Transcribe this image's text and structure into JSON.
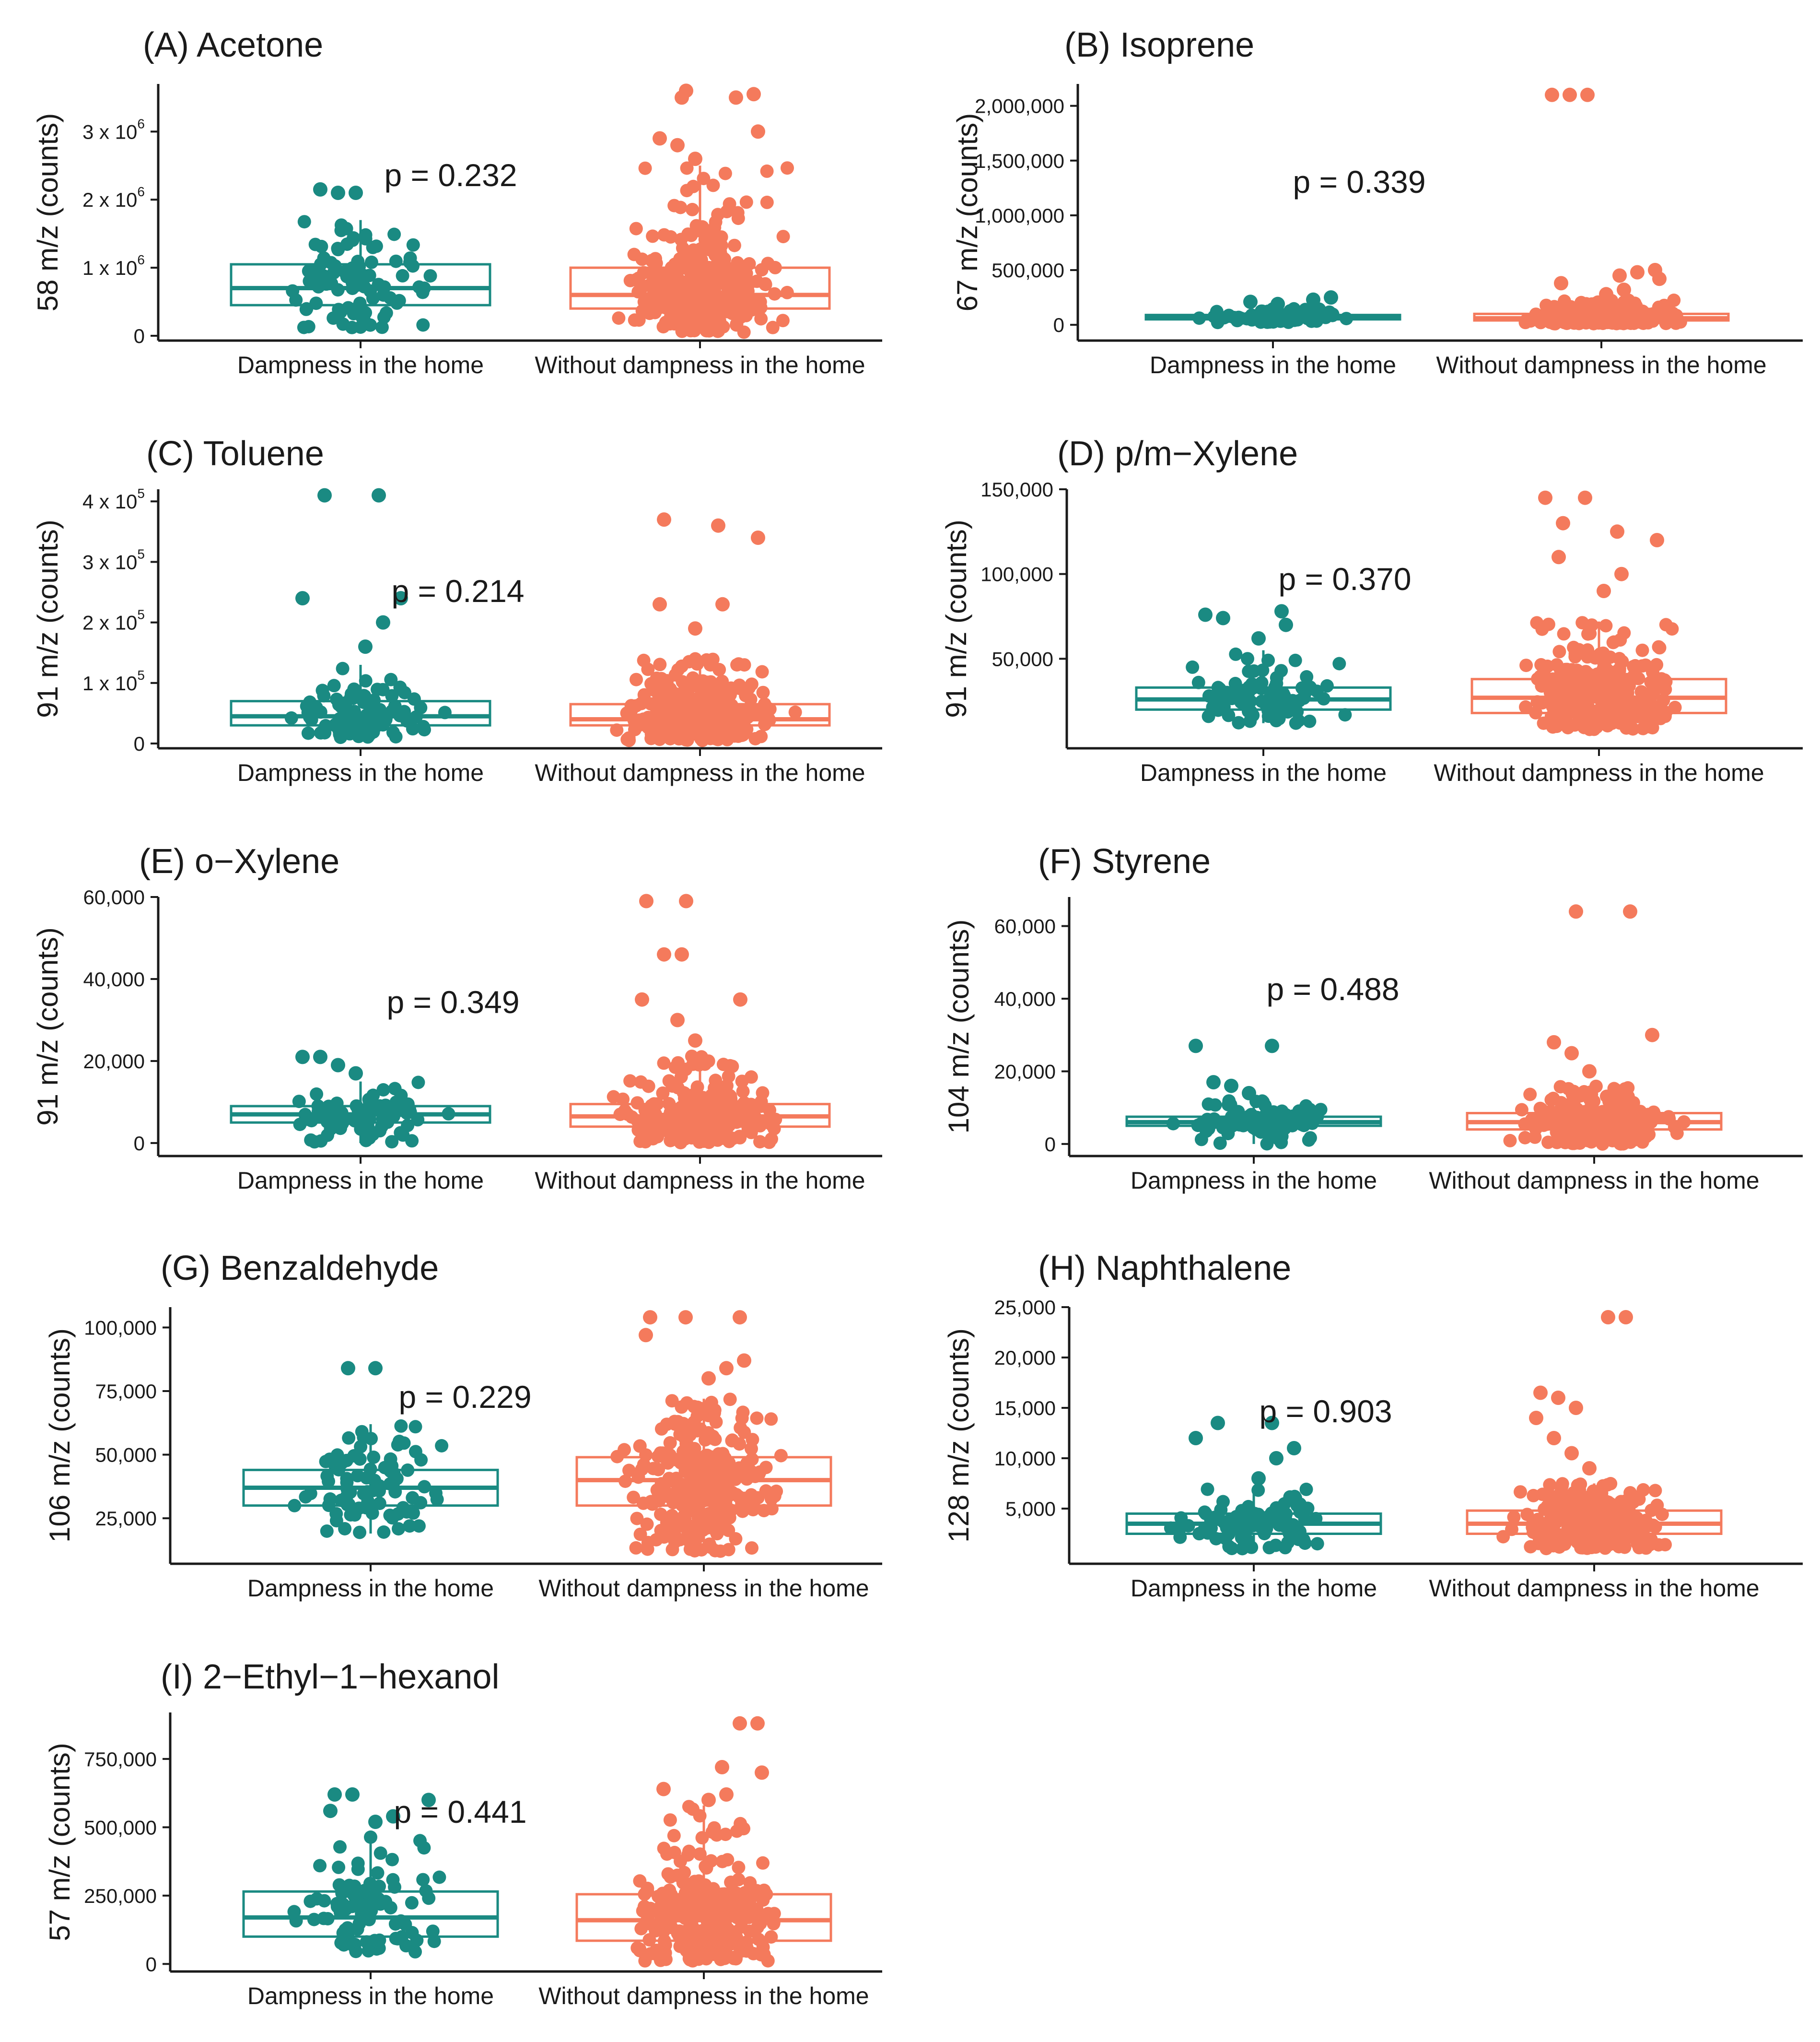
{
  "colors": {
    "dampness": "#1a8a82",
    "without": "#f47a5c",
    "axis": "#1a1a1a"
  },
  "chart_data": [
    {
      "type": "box",
      "panel": "(A)",
      "title": "Acetone",
      "ylabel": "58 m/z (counts)",
      "categories": [
        "Dampness in the home",
        "Without dampness in the home"
      ],
      "ylim": [
        0,
        3700000
      ],
      "yticks": [
        0,
        1000000,
        2000000,
        3000000
      ],
      "ytick_labels": [
        "0",
        "1 x 10",
        "2 x 10",
        "3 x 10"
      ],
      "ytick_sup": [
        "",
        "6",
        "6",
        "6"
      ],
      "p_value": "p = 0.232",
      "series": [
        {
          "name": "Dampness in the home",
          "n": 90,
          "min": 100000,
          "q1": 450000,
          "median": 700000,
          "q3": 1050000,
          "max": 1700000,
          "outliers": [
            2100000,
            2100000,
            2150000
          ]
        },
        {
          "name": "Without dampness in the home",
          "n": 300,
          "min": 50000,
          "q1": 400000,
          "median": 600000,
          "q3": 1000000,
          "max": 2500000,
          "outliers": [
            2600000,
            2800000,
            2900000,
            3000000,
            3500000,
            3500000,
            3550000,
            3600000
          ]
        }
      ]
    },
    {
      "type": "box",
      "panel": "(B)",
      "title": "Isoprene",
      "ylabel": "67 m/z (counts)",
      "categories": [
        "Dampness in the home",
        "Without dampness in the home"
      ],
      "ylim": [
        -100000,
        2200000
      ],
      "yticks": [
        0,
        500000,
        1000000,
        1500000,
        2000000
      ],
      "ytick_labels": [
        "0",
        "500,000",
        "1,000,000",
        "1,500,000",
        "2,000,000"
      ],
      "p_value": "p = 0.339",
      "series": [
        {
          "name": "Dampness in the home",
          "n": 90,
          "min": 20000,
          "q1": 50000,
          "median": 65000,
          "q3": 90000,
          "max": 150000,
          "outliers": [
            190000,
            210000,
            230000,
            250000
          ]
        },
        {
          "name": "Without dampness in the home",
          "n": 300,
          "min": 10000,
          "q1": 40000,
          "median": 60000,
          "q3": 100000,
          "max": 230000,
          "outliers": [
            280000,
            320000,
            380000,
            420000,
            450000,
            480000,
            500000,
            2100000,
            2100000,
            2100000
          ]
        }
      ]
    },
    {
      "type": "box",
      "panel": "(C)",
      "title": "Toluene",
      "ylabel": "91 m/z (counts)",
      "categories": [
        "Dampness in the home",
        "Without dampness in the home"
      ],
      "ylim": [
        0,
        420000
      ],
      "yticks": [
        0,
        100000,
        200000,
        300000,
        400000
      ],
      "ytick_labels": [
        "0",
        "1 x 10",
        "2 x 10",
        "3 x 10",
        "4 x 10"
      ],
      "ytick_sup": [
        "",
        "5",
        "5",
        "5",
        "5"
      ],
      "p_value": "p = 0.214",
      "series": [
        {
          "name": "Dampness in the home",
          "n": 90,
          "min": 10000,
          "q1": 30000,
          "median": 45000,
          "q3": 70000,
          "max": 130000,
          "outliers": [
            160000,
            200000,
            240000,
            240000,
            410000,
            410000
          ]
        },
        {
          "name": "Without dampness in the home",
          "n": 300,
          "min": 5000,
          "q1": 30000,
          "median": 40000,
          "q3": 65000,
          "max": 140000,
          "outliers": [
            190000,
            230000,
            230000,
            340000,
            360000,
            370000
          ]
        }
      ]
    },
    {
      "type": "box",
      "panel": "(D)",
      "title": "p/m−Xylene",
      "ylabel": "91 m/z (counts)",
      "categories": [
        "Dampness in the home",
        "Without dampness in the home"
      ],
      "ylim": [
        0,
        150000
      ],
      "yticks": [
        50000,
        100000,
        150000
      ],
      "ytick_labels": [
        "50,000",
        "100,000",
        "150,000"
      ],
      "p_value": "p = 0.370",
      "series": [
        {
          "name": "Dampness in the home",
          "n": 90,
          "min": 12000,
          "q1": 20000,
          "median": 26000,
          "q3": 33000,
          "max": 55000,
          "outliers": [
            62000,
            70000,
            74000,
            76000,
            78000
          ]
        },
        {
          "name": "Without dampness in the home",
          "n": 300,
          "min": 8000,
          "q1": 18000,
          "median": 27000,
          "q3": 38000,
          "max": 72000,
          "outliers": [
            90000,
            100000,
            110000,
            120000,
            125000,
            130000,
            145000,
            145000
          ]
        }
      ]
    },
    {
      "type": "box",
      "panel": "(E)",
      "title": "o−Xylene",
      "ylabel": "91 m/z (counts)",
      "categories": [
        "Dampness in the home",
        "Without dampness in the home"
      ],
      "ylim": [
        -2000,
        60000
      ],
      "yticks": [
        0,
        20000,
        40000,
        60000
      ],
      "ytick_labels": [
        "0",
        "20,000",
        "40,000",
        "60,000"
      ],
      "p_value": "p = 0.349",
      "series": [
        {
          "name": "Dampness in the home",
          "n": 90,
          "min": 0,
          "q1": 5000,
          "median": 7000,
          "q3": 9000,
          "max": 15000,
          "outliers": [
            17000,
            19000,
            21000,
            21000
          ]
        },
        {
          "name": "Without dampness in the home",
          "n": 300,
          "min": 0,
          "q1": 4000,
          "median": 6500,
          "q3": 9500,
          "max": 22000,
          "outliers": [
            25000,
            30000,
            35000,
            35000,
            46000,
            46000,
            59000,
            59000
          ]
        }
      ]
    },
    {
      "type": "box",
      "panel": "(F)",
      "title": "Styrene",
      "ylabel": "104 m/z (counts)",
      "categories": [
        "Dampness in the home",
        "Without dampness in the home"
      ],
      "ylim": [
        -2000,
        68000
      ],
      "yticks": [
        0,
        20000,
        40000,
        60000
      ],
      "ytick_labels": [
        "0",
        "20,000",
        "40,000",
        "60,000"
      ],
      "p_value": "p = 0.488",
      "series": [
        {
          "name": "Dampness in the home",
          "n": 90,
          "min": 0,
          "q1": 5000,
          "median": 6000,
          "q3": 7500,
          "max": 12000,
          "outliers": [
            14000,
            16000,
            17000,
            27000,
            27000
          ]
        },
        {
          "name": "Without dampness in the home",
          "n": 300,
          "min": 0,
          "q1": 4000,
          "median": 6000,
          "q3": 8500,
          "max": 16000,
          "outliers": [
            20000,
            25000,
            28000,
            30000,
            64000,
            64000
          ]
        }
      ]
    },
    {
      "type": "box",
      "panel": "(G)",
      "title": "Benzaldehyde",
      "ylabel": "106 m/z (counts)",
      "categories": [
        "Dampness in the home",
        "Without dampness in the home"
      ],
      "ylim": [
        9000,
        108000
      ],
      "yticks": [
        25000,
        50000,
        75000,
        100000
      ],
      "ytick_labels": [
        "25,000",
        "50,000",
        "75,000",
        "100,000"
      ],
      "p_value": "p = 0.229",
      "series": [
        {
          "name": "Dampness in the home",
          "n": 90,
          "min": 19000,
          "q1": 30000,
          "median": 37000,
          "q3": 44000,
          "max": 62000,
          "outliers": [
            84000,
            84000
          ]
        },
        {
          "name": "Without dampness in the home",
          "n": 300,
          "min": 12000,
          "q1": 30000,
          "median": 40000,
          "q3": 49000,
          "max": 72000,
          "outliers": [
            80000,
            84000,
            87000,
            97000,
            104000,
            104000,
            104000
          ]
        }
      ]
    },
    {
      "type": "box",
      "panel": "(H)",
      "title": "Naphthalene",
      "ylabel": "128 m/z (counts)",
      "categories": [
        "Dampness in the home",
        "Without dampness in the home"
      ],
      "ylim": [
        0,
        25000
      ],
      "yticks": [
        5000,
        10000,
        15000,
        20000,
        25000
      ],
      "ytick_labels": [
        "5,000",
        "10,000",
        "15,000",
        "20,000",
        "25,000"
      ],
      "p_value": "p = 0.903",
      "series": [
        {
          "name": "Dampness in the home",
          "n": 90,
          "min": 1000,
          "q1": 2500,
          "median": 3500,
          "q3": 4500,
          "max": 7000,
          "outliers": [
            8000,
            10000,
            11000,
            12000,
            13500,
            13500
          ]
        },
        {
          "name": "Without dampness in the home",
          "n": 300,
          "min": 1000,
          "q1": 2500,
          "median": 3500,
          "q3": 4800,
          "max": 7500,
          "outliers": [
            9000,
            10500,
            12000,
            14000,
            15000,
            16000,
            16500,
            24000,
            24000
          ]
        }
      ]
    },
    {
      "type": "box",
      "panel": "(I)",
      "title": "2−Ethyl−1−hexanol",
      "ylabel": "57 m/z (counts)",
      "categories": [
        "Dampness in the home",
        "Without dampness in the home"
      ],
      "ylim": [
        -10000,
        920000
      ],
      "yticks": [
        0,
        250000,
        500000,
        750000
      ],
      "ytick_labels": [
        "0",
        "250,000",
        "500,000",
        "750,000"
      ],
      "p_value": "p = 0.441",
      "series": [
        {
          "name": "Dampness in the home",
          "n": 90,
          "min": 40000,
          "q1": 100000,
          "median": 170000,
          "q3": 265000,
          "max": 480000,
          "outliers": [
            520000,
            540000,
            560000,
            600000,
            620000,
            620000
          ]
        },
        {
          "name": "Without dampness in the home",
          "n": 300,
          "min": 10000,
          "q1": 85000,
          "median": 160000,
          "q3": 255000,
          "max": 580000,
          "outliers": [
            600000,
            620000,
            640000,
            700000,
            720000,
            880000,
            880000
          ]
        }
      ]
    }
  ]
}
